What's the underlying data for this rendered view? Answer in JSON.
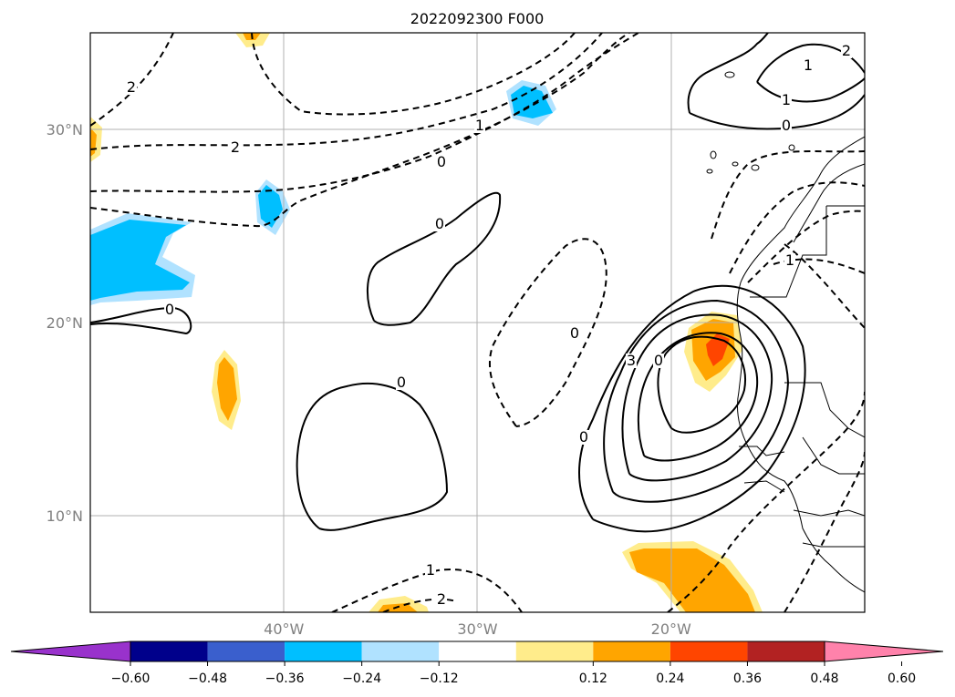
{
  "title": "2022092300 F000",
  "map": {
    "lon_range": [
      -50,
      -10
    ],
    "lat_range": [
      5,
      35
    ],
    "lon_ticks": [
      {
        "value": -40,
        "label": "40°W"
      },
      {
        "value": -30,
        "label": "30°W"
      },
      {
        "value": -20,
        "label": "20°W"
      }
    ],
    "lat_ticks": [
      {
        "value": 10,
        "label": "10°N"
      },
      {
        "value": 20,
        "label": "20°N"
      },
      {
        "value": 30,
        "label": "30°N"
      }
    ],
    "grid": true,
    "contour_labels": [
      "2",
      "2",
      "1",
      "0",
      "0",
      "0",
      "0",
      "0",
      "1",
      "2",
      "3",
      "0",
      "1",
      "1",
      "0",
      "0",
      "1",
      "2"
    ]
  },
  "colorbar": {
    "ticks": [
      "−0.60",
      "−0.48",
      "−0.36",
      "−0.24",
      "−0.12",
      "0.12",
      "0.24",
      "0.36",
      "0.48",
      "0.60"
    ],
    "colors": [
      "#9932cc",
      "#00008b",
      "#3a5fcd",
      "#00bfff",
      "#b0e2ff",
      "#ffffff",
      "#ffec8b",
      "#ffa500",
      "#ff4500",
      "#b22222",
      "#ff82ab"
    ],
    "extend": "both"
  }
}
